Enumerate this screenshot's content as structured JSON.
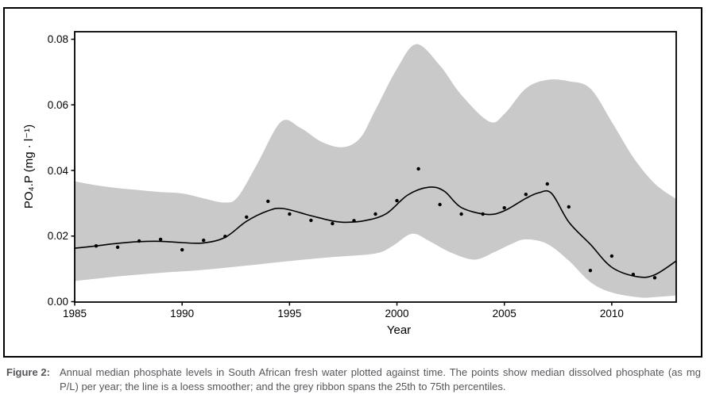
{
  "figure": {
    "caption_label": "Figure 2:",
    "caption_text": "Annual median phosphate levels in South African fresh water plotted against time. The points show median dissolved phosphate (as mg P/L) per year; the line is a loess smoother; and the grey ribbon spans the 25th to 75th percentiles."
  },
  "chart_data": {
    "type": "scatter",
    "title": "",
    "xlabel": "Year",
    "ylabel": "PO₄.P (mg · l⁻¹)",
    "xlim": [
      1985,
      2013
    ],
    "ylim": [
      0,
      0.08
    ],
    "x_ticks": [
      1985,
      1990,
      1995,
      2000,
      2005,
      2010
    ],
    "x_tick_labels": [
      "1985",
      "1990",
      "1995",
      "2000",
      "2005",
      "2010"
    ],
    "y_ticks": [
      0,
      0.02,
      0.04,
      0.06,
      0.08
    ],
    "y_tick_labels": [
      "0.00",
      "0.02",
      "0.04",
      "0.06",
      "0.08"
    ],
    "grid": false,
    "legend": "none",
    "colors": {
      "ribbon": "#c9c9c9",
      "smoother": "#000000",
      "points": "#000000",
      "panel_border": "#000000",
      "caption_text": "#55565a"
    },
    "points": {
      "name": "annual median dissolved phosphate (mg P/L)",
      "years": [
        1986,
        1987,
        1988,
        1989,
        1990,
        1991,
        1992,
        1993,
        1994,
        1995,
        1996,
        1997,
        1998,
        1999,
        2000,
        2001,
        2002,
        2003,
        2004,
        2005,
        2006,
        2007,
        2008,
        2009,
        2010,
        2011,
        2012
      ],
      "values": [
        0.017,
        0.0166,
        0.0185,
        0.019,
        0.0158,
        0.0187,
        0.0199,
        0.0258,
        0.0306,
        0.0267,
        0.0248,
        0.0238,
        0.0247,
        0.0267,
        0.0308,
        0.0405,
        0.0296,
        0.0267,
        0.0267,
        0.0286,
        0.0327,
        0.0359,
        0.0289,
        0.0095,
        0.0139,
        0.0083,
        0.0073
      ]
    },
    "smoother": {
      "name": "loess smoother",
      "x": [
        1985,
        1986,
        1987,
        1988,
        1989,
        1990,
        1991,
        1992,
        1993,
        1994,
        1994.7,
        1996,
        1997,
        1997.6,
        1998.5,
        1999.5,
        2000.5,
        2001.5,
        2002.2,
        2003,
        2004.2,
        2005,
        2006,
        2006.6,
        2007.2,
        2008,
        2009,
        2010,
        2011.2,
        2012,
        2013
      ],
      "y": [
        0.0163,
        0.017,
        0.0178,
        0.0183,
        0.0184,
        0.018,
        0.0179,
        0.0196,
        0.0245,
        0.0277,
        0.0284,
        0.0262,
        0.0246,
        0.0242,
        0.0247,
        0.0268,
        0.0325,
        0.0349,
        0.0337,
        0.0287,
        0.0266,
        0.0277,
        0.0315,
        0.0332,
        0.033,
        0.0243,
        0.0175,
        0.0105,
        0.0076,
        0.0082,
        0.0124
      ]
    },
    "ribbon": {
      "name": "25th to 75th percentile ribbon",
      "upper": {
        "x": [
          1985,
          1986,
          1987,
          1988,
          1989,
          1990,
          1991,
          1992,
          1992.6,
          1993.5,
          1994.6,
          1995.5,
          1996.5,
          1997.5,
          1998.3,
          1999,
          2000,
          2000.9,
          2002,
          2003,
          2004.3,
          2005,
          2006,
          2007,
          2008,
          2009,
          2010,
          2011,
          2012,
          2013
        ],
        "y": [
          0.0367,
          0.0355,
          0.0346,
          0.034,
          0.0334,
          0.033,
          0.0315,
          0.0302,
          0.032,
          0.042,
          0.0548,
          0.053,
          0.0487,
          0.0471,
          0.05,
          0.0585,
          0.071,
          0.0785,
          0.072,
          0.063,
          0.0549,
          0.0572,
          0.065,
          0.0676,
          0.0672,
          0.065,
          0.0548,
          0.044,
          0.036,
          0.0313
        ]
      },
      "lower": {
        "x": [
          1985,
          1987,
          1989,
          1991,
          1993,
          1995,
          1997,
          1999,
          1999.8,
          2000.7,
          2001.5,
          2002.5,
          2003.6,
          2004.5,
          2005.3,
          2006,
          2007,
          2008,
          2009,
          2010,
          2011.3,
          2012,
          2013
        ],
        "y": [
          0.0063,
          0.0077,
          0.0088,
          0.0097,
          0.011,
          0.0124,
          0.0136,
          0.0147,
          0.017,
          0.0207,
          0.0185,
          0.015,
          0.0128,
          0.015,
          0.0175,
          0.019,
          0.0176,
          0.0125,
          0.006,
          0.0028,
          0.0013,
          0.0014,
          0.0019
        ]
      }
    }
  }
}
